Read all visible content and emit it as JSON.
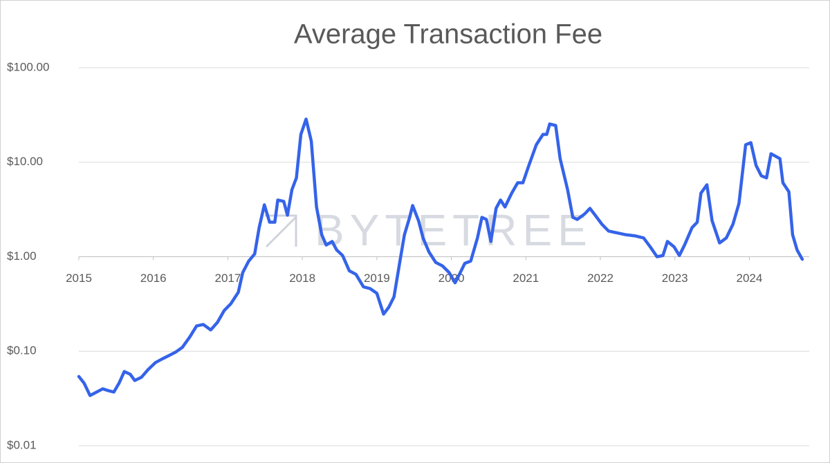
{
  "chart_data": {
    "type": "line",
    "title": "Average Transaction Fee",
    "watermark": "BYTETREE",
    "log_scale_y": true,
    "grid": true,
    "x_axis_at": 1,
    "xlim": [
      2015,
      2024.85
    ],
    "xticks": [
      2015,
      2016,
      2017,
      2018,
      2019,
      2020,
      2021,
      2022,
      2023,
      2024
    ],
    "ylim": [
      0.01,
      100
    ],
    "yticks": [
      {
        "value": 100,
        "label": "$100.00"
      },
      {
        "value": 10,
        "label": "$10.00"
      },
      {
        "value": 1,
        "label": "$1.00"
      },
      {
        "value": 0.1,
        "label": "$0.10"
      },
      {
        "value": 0.01,
        "label": "$0.01"
      }
    ],
    "series": [
      {
        "color": "#3563e9",
        "x": [
          2015.0,
          2015.07,
          2015.15,
          2015.24,
          2015.32,
          2015.41,
          2015.47,
          2015.54,
          2015.61,
          2015.69,
          2015.75,
          2015.84,
          2015.93,
          2016.03,
          2016.12,
          2016.21,
          2016.3,
          2016.39,
          2016.49,
          2016.58,
          2016.67,
          2016.77,
          2016.86,
          2016.95,
          2017.04,
          2017.14,
          2017.2,
          2017.28,
          2017.36,
          2017.42,
          2017.49,
          2017.56,
          2017.63,
          2017.67,
          2017.75,
          2017.8,
          2017.86,
          2017.92,
          2017.98,
          2018.05,
          2018.12,
          2018.19,
          2018.26,
          2018.32,
          2018.4,
          2018.46,
          2018.54,
          2018.63,
          2018.72,
          2018.82,
          2018.91,
          2019.0,
          2019.09,
          2019.16,
          2019.23,
          2019.31,
          2019.37,
          2019.44,
          2019.48,
          2019.56,
          2019.62,
          2019.7,
          2019.79,
          2019.88,
          2019.97,
          2020.05,
          2020.12,
          2020.18,
          2020.26,
          2020.35,
          2020.41,
          2020.47,
          2020.53,
          2020.6,
          2020.66,
          2020.72,
          2020.81,
          2020.89,
          2020.96,
          2021.04,
          2021.14,
          2021.23,
          2021.28,
          2021.32,
          2021.4,
          2021.46,
          2021.56,
          2021.63,
          2021.69,
          2021.79,
          2021.86,
          2021.93,
          2022.02,
          2022.11,
          2022.25,
          2022.34,
          2022.47,
          2022.58,
          2022.67,
          2022.76,
          2022.84,
          2022.9,
          2022.99,
          2023.06,
          2023.13,
          2023.23,
          2023.3,
          2023.35,
          2023.43,
          2023.5,
          2023.6,
          2023.69,
          2023.78,
          2023.86,
          2023.95,
          2024.02,
          2024.09,
          2024.16,
          2024.23,
          2024.29,
          2024.41,
          2024.45,
          2024.53,
          2024.58,
          2024.64,
          2024.71
        ],
        "values": [
          0.054,
          0.046,
          0.034,
          0.037,
          0.04,
          0.038,
          0.037,
          0.046,
          0.061,
          0.057,
          0.049,
          0.053,
          0.064,
          0.076,
          0.083,
          0.09,
          0.098,
          0.11,
          0.142,
          0.185,
          0.192,
          0.168,
          0.202,
          0.269,
          0.318,
          0.42,
          0.68,
          0.9,
          1.07,
          2.03,
          3.54,
          2.32,
          2.32,
          3.98,
          3.85,
          2.75,
          5.12,
          6.83,
          19.7,
          28.6,
          16.7,
          3.36,
          1.71,
          1.33,
          1.45,
          1.18,
          1.03,
          0.71,
          0.65,
          0.48,
          0.46,
          0.41,
          0.247,
          0.292,
          0.377,
          0.9,
          1.71,
          2.61,
          3.48,
          2.4,
          1.58,
          1.12,
          0.87,
          0.8,
          0.68,
          0.53,
          0.68,
          0.85,
          0.9,
          1.58,
          2.61,
          2.48,
          1.45,
          3.25,
          3.98,
          3.36,
          4.71,
          6.06,
          6.06,
          9.24,
          15.3,
          19.7,
          19.7,
          25.4,
          24.5,
          10.9,
          5.12,
          2.61,
          2.48,
          2.84,
          3.25,
          2.75,
          2.21,
          1.87,
          1.77,
          1.71,
          1.66,
          1.58,
          1.27,
          1.0,
          1.03,
          1.45,
          1.27,
          1.03,
          1.33,
          2.03,
          2.32,
          4.71,
          5.77,
          2.4,
          1.4,
          1.58,
          2.21,
          3.66,
          15.3,
          16.1,
          9.24,
          7.18,
          6.83,
          12.3,
          10.9,
          6.06,
          4.87,
          1.71,
          1.18,
          0.94
        ]
      }
    ]
  }
}
